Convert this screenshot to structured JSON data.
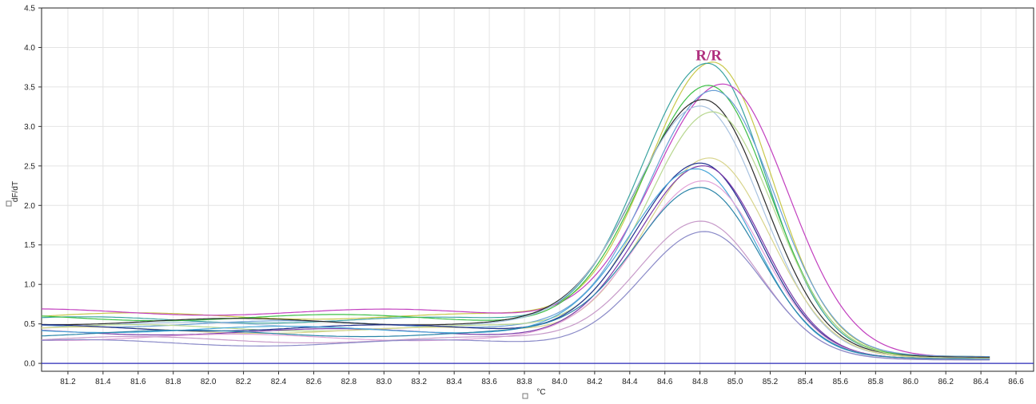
{
  "chart_data": {
    "type": "line",
    "xlabel": "°C",
    "ylabel": "dF/dT",
    "xlim": [
      81.05,
      86.7
    ],
    "ylim": [
      -0.1,
      4.5
    ],
    "x_ticks": [
      "81.2",
      "81.4",
      "81.6",
      "81.8",
      "82.0",
      "82.2",
      "82.4",
      "82.6",
      "82.8",
      "83.0",
      "83.2",
      "83.4",
      "83.6",
      "83.8",
      "84.0",
      "84.2",
      "84.4",
      "84.6",
      "84.8",
      "85.0",
      "85.2",
      "85.4",
      "85.6",
      "85.8",
      "86.0",
      "86.2",
      "86.4",
      "86.6"
    ],
    "y_ticks": [
      "0.0",
      "0.5",
      "1.0",
      "1.5",
      "2.0",
      "2.5",
      "3.0",
      "3.5",
      "4.0",
      "4.5"
    ],
    "grid": true,
    "baseline": {
      "y": 0.0,
      "color": "#2b2bb8"
    },
    "annotation": {
      "text": "R/R",
      "x": 84.85,
      "y": 3.9,
      "color": "#b0307f"
    },
    "series": [
      {
        "color": "#c8c84a",
        "peak_x": 84.87,
        "peak": 3.83,
        "base_left": 0.6,
        "base_right": 0.08,
        "sigma_left": 0.37,
        "sigma_right": 0.33
      },
      {
        "color": "#3aa3a0",
        "peak_x": 84.84,
        "peak": 3.8,
        "base_left": 0.55,
        "base_right": 0.08,
        "sigma_left": 0.38,
        "sigma_right": 0.33
      },
      {
        "color": "#c23fbf",
        "peak_x": 84.93,
        "peak": 3.52,
        "base_left": 0.65,
        "base_right": 0.07,
        "sigma_left": 0.4,
        "sigma_right": 0.36
      },
      {
        "color": "#3dbf46",
        "peak_x": 84.85,
        "peak": 3.5,
        "base_left": 0.58,
        "base_right": 0.07,
        "sigma_left": 0.38,
        "sigma_right": 0.34
      },
      {
        "color": "#6a9fd6",
        "peak_x": 84.88,
        "peak": 3.45,
        "base_left": 0.5,
        "base_right": 0.08,
        "sigma_left": 0.37,
        "sigma_right": 0.34
      },
      {
        "color": "#2b2b2b",
        "peak_x": 84.82,
        "peak": 3.35,
        "base_left": 0.53,
        "base_right": 0.07,
        "sigma_left": 0.38,
        "sigma_right": 0.34
      },
      {
        "color": "#a9c3e0",
        "peak_x": 84.8,
        "peak": 3.28,
        "base_left": 0.48,
        "base_right": 0.06,
        "sigma_left": 0.38,
        "sigma_right": 0.34
      },
      {
        "color": "#b7d78f",
        "peak_x": 84.87,
        "peak": 3.2,
        "base_left": 0.45,
        "base_right": 0.06,
        "sigma_left": 0.37,
        "sigma_right": 0.34
      },
      {
        "color": "#d8d48c",
        "peak_x": 84.85,
        "peak": 2.6,
        "base_left": 0.42,
        "base_right": 0.06,
        "sigma_left": 0.37,
        "sigma_right": 0.34
      },
      {
        "color": "#1f2f8f",
        "peak_x": 84.8,
        "peak": 2.52,
        "base_left": 0.45,
        "base_right": 0.05,
        "sigma_left": 0.37,
        "sigma_right": 0.33
      },
      {
        "color": "#7a3aa8",
        "peak_x": 84.82,
        "peak": 2.48,
        "base_left": 0.4,
        "base_right": 0.05,
        "sigma_left": 0.37,
        "sigma_right": 0.33
      },
      {
        "color": "#4aa8d8",
        "peak_x": 84.78,
        "peak": 2.45,
        "base_left": 0.43,
        "base_right": 0.05,
        "sigma_left": 0.37,
        "sigma_right": 0.33
      },
      {
        "color": "#e3a3d8",
        "peak_x": 84.82,
        "peak": 2.32,
        "base_left": 0.33,
        "base_right": 0.05,
        "sigma_left": 0.37,
        "sigma_right": 0.33
      },
      {
        "color": "#2a84a8",
        "peak_x": 84.8,
        "peak": 2.25,
        "base_left": 0.38,
        "base_right": 0.05,
        "sigma_left": 0.37,
        "sigma_right": 0.33
      },
      {
        "color": "#c79ac9",
        "peak_x": 84.8,
        "peak": 1.82,
        "base_left": 0.3,
        "base_right": 0.04,
        "sigma_left": 0.36,
        "sigma_right": 0.33
      },
      {
        "color": "#8a8ac8",
        "peak_x": 84.82,
        "peak": 1.67,
        "base_left": 0.26,
        "base_right": 0.04,
        "sigma_left": 0.36,
        "sigma_right": 0.33
      }
    ]
  }
}
